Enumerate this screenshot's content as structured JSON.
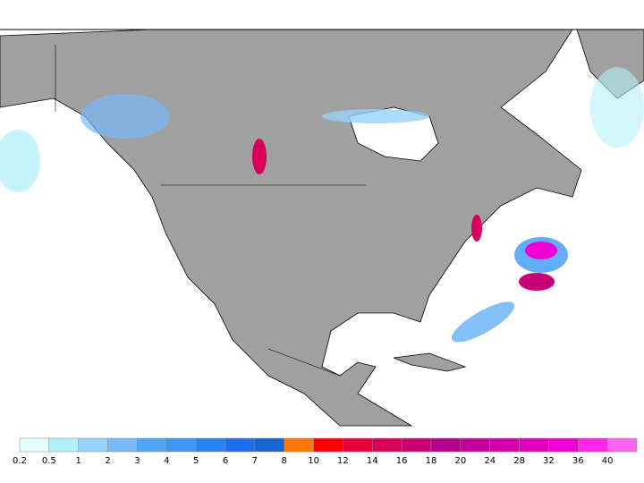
{
  "legend": {
    "items": [
      {
        "label": 0.2,
        "color": "#e1ffff"
      },
      {
        "label": 0.5,
        "color": "#b4f0fa"
      },
      {
        "label": 1,
        "color": "#96d2fa"
      },
      {
        "label": 2,
        "color": "#78b9fa"
      },
      {
        "label": 3,
        "color": "#50a5f5"
      },
      {
        "label": 4,
        "color": "#3c97f5"
      },
      {
        "label": 5,
        "color": "#2883f0"
      },
      {
        "label": 6,
        "color": "#1e6eeb"
      },
      {
        "label": 7,
        "color": "#1464d2"
      },
      {
        "label": 8,
        "color": "#ff7800"
      },
      {
        "label": 10,
        "color": "#ff0000"
      },
      {
        "label": 12,
        "color": "#e6003c"
      },
      {
        "label": 14,
        "color": "#d7005a"
      },
      {
        "label": 16,
        "color": "#c80073"
      },
      {
        "label": 18,
        "color": "#b4008c"
      },
      {
        "label": 20,
        "color": "#c3009b"
      },
      {
        "label": 24,
        "color": "#d200aa"
      },
      {
        "label": 28,
        "color": "#e100be"
      },
      {
        "label": 32,
        "color": "#f000d2"
      },
      {
        "label": 36,
        "color": "#ff28e6"
      },
      {
        "label": 40,
        "color": "#ff64f0"
      }
    ]
  }
}
